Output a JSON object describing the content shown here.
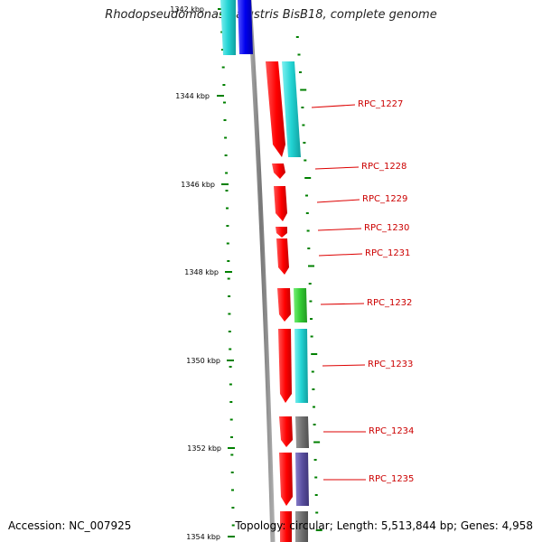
{
  "title": "Rhodopseudomonas palustris BisB18, complete genome",
  "footer": {
    "accession_label": "Accession:",
    "accession": "NC_007925",
    "topology_label": "Topology:",
    "topology": "circular",
    "length_label": "Length:",
    "length": "5,513,844 bp",
    "genes_label": "Genes:",
    "genes": "4,958"
  },
  "ruler": {
    "ticks": [
      "1342 kbp",
      "1344 kbp",
      "1346 kbp",
      "1348 kbp",
      "1350 kbp",
      "1352 kbp",
      "1354 kbp"
    ]
  },
  "genes": [
    {
      "name": "RPC_1227"
    },
    {
      "name": "RPC_1228"
    },
    {
      "name": "RPC_1229"
    },
    {
      "name": "RPC_1230"
    },
    {
      "name": "RPC_1231"
    },
    {
      "name": "RPC_1232"
    },
    {
      "name": "RPC_1233"
    },
    {
      "name": "RPC_1234"
    },
    {
      "name": "RPC_1235"
    }
  ],
  "colors": {
    "gene": "#ff0000",
    "label_line": "#dd0000",
    "label": "#cc0000",
    "tick": "#008000",
    "backbone": "#888888",
    "cog_cyan": "#22d3d3",
    "cog_blue": "#0000ee",
    "cog_green": "#33cc33",
    "cog_gray": "#707070",
    "cog_purple": "#5a4fa0"
  }
}
